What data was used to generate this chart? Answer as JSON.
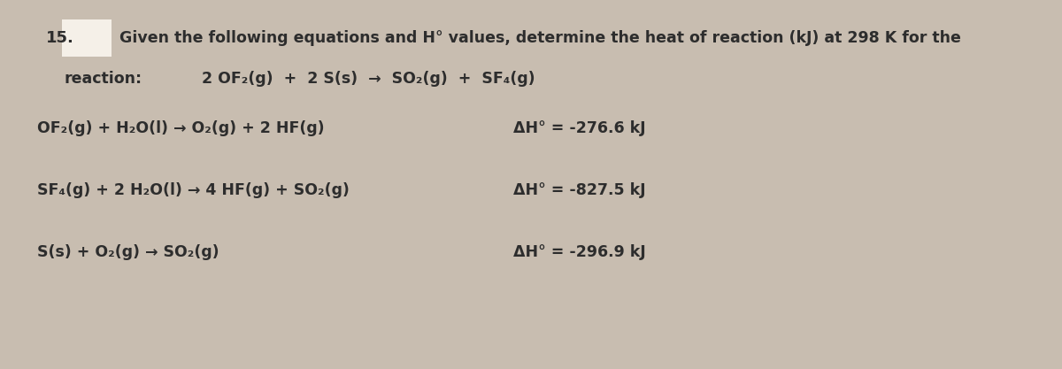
{
  "background_color": "#c8bdb0",
  "text_color": "#2d2d2d",
  "number": "15.",
  "question_line1": "Given the following equations and H° values, determine the heat of reaction (kJ) at 298 K for the",
  "question_line2": "reaction:",
  "reaction_main": "2 OF₂(g)  +  2 S(s)  →  SO₂(g)  +  SF₄(g)",
  "eq1_left": "OF₂(g) + H₂O(l) → O₂(g) + 2 HF(g)",
  "eq1_right": "ΔH° = -276.6 kJ",
  "eq2_left": "SF₄(g) + 2 H₂O(l) → 4 HF(g) + SO₂(g)",
  "eq2_right": "ΔH° = -827.5 kJ",
  "eq3_left": "S(s) + O₂(g) → SO₂(g)",
  "eq3_right": "ΔH° = -296.9 kJ",
  "rect_color": "#f5f0e8",
  "font_size_question": 12.5,
  "font_size_eq": 12.5,
  "font_size_number": 13
}
